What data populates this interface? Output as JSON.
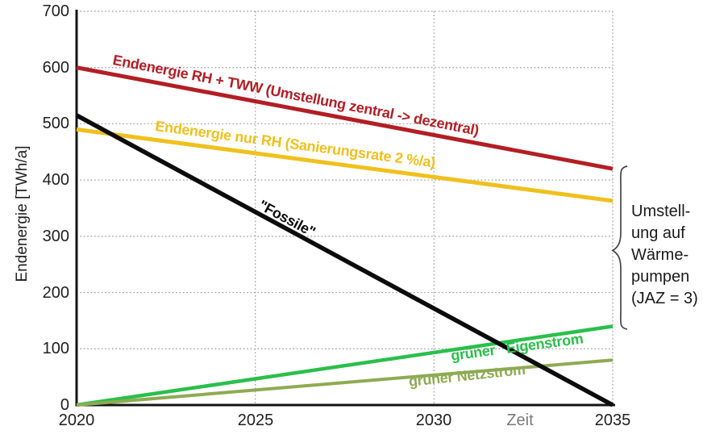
{
  "chart_data": {
    "type": "line",
    "x": [
      2020,
      2035
    ],
    "xlim": [
      2020,
      2035
    ],
    "ylim": [
      0,
      700
    ],
    "xlabel": "Zeit",
    "ylabel": "Endenergie [TWh/a]",
    "grid": "dotted gray gridlines, horizontal every 100 TWh/a, vertical every 5 years",
    "legend_position": "labels drawn along lines",
    "xticks": [
      "2020",
      "2025",
      "2030",
      "2035"
    ],
    "yticks": [
      "0",
      "100",
      "200",
      "300",
      "400",
      "500",
      "600",
      "700"
    ],
    "series": [
      {
        "name": "Endenergie RH + TWW (Umstellung zentral -> dezentral)",
        "values": [
          600,
          420
        ],
        "color": "#b21e24",
        "width": 5
      },
      {
        "name": "Endenergie nur RH (Sanierungsrate 2 %/a)",
        "values": [
          490,
          363
        ],
        "color": "#f0c01c",
        "width": 5
      },
      {
        "name": "gruener Eigenstrom",
        "values": [
          0,
          140
        ],
        "color": "#2abf4b",
        "width": 4.5
      },
      {
        "name": "gruener Netzstrom",
        "values": [
          0,
          80
        ],
        "color": "#8dab52",
        "width": 4
      },
      {
        "name": "Fossile",
        "values": [
          515,
          0
        ],
        "color": "#0c0c0c",
        "width": 5.5
      }
    ],
    "annotation": "Umstellung auf Wärmepumpen (JAZ = 3), brace spanning from red line end (420) to green line end (140) at 2035"
  },
  "axis": {
    "ylabel": "Endenergie [TWh/a]",
    "xlabel": "Zeit"
  },
  "line_labels": {
    "rh_tww": "Endenergie RH + TWW (Umstellung zentral -> dezentral)",
    "nur_rh": "Endenergie nur RH (Sanierungsrate 2 %/a)",
    "fossile": "\"Fossile\"",
    "eigenstrom": "grüner   Eigenstrom",
    "netzstrom": "grüner Netzstrom"
  },
  "annotation": {
    "line1": "Umstell-",
    "line2": "ung auf",
    "line3": "Wärme-",
    "line4": "pumpen",
    "line5": "(JAZ = 3)"
  },
  "colors": {
    "rh_tww_red": "#b21e24",
    "nur_rh_gold": "#f0c01c",
    "fossile_black": "#0c0c0c",
    "eigenstrom_green": "#2abf4b",
    "netzstrom_olive": "#8dab52",
    "grid_gray": "#9b9b9b",
    "xlabel_gray": "#7a7a7a",
    "brace_gray": "#454545"
  }
}
